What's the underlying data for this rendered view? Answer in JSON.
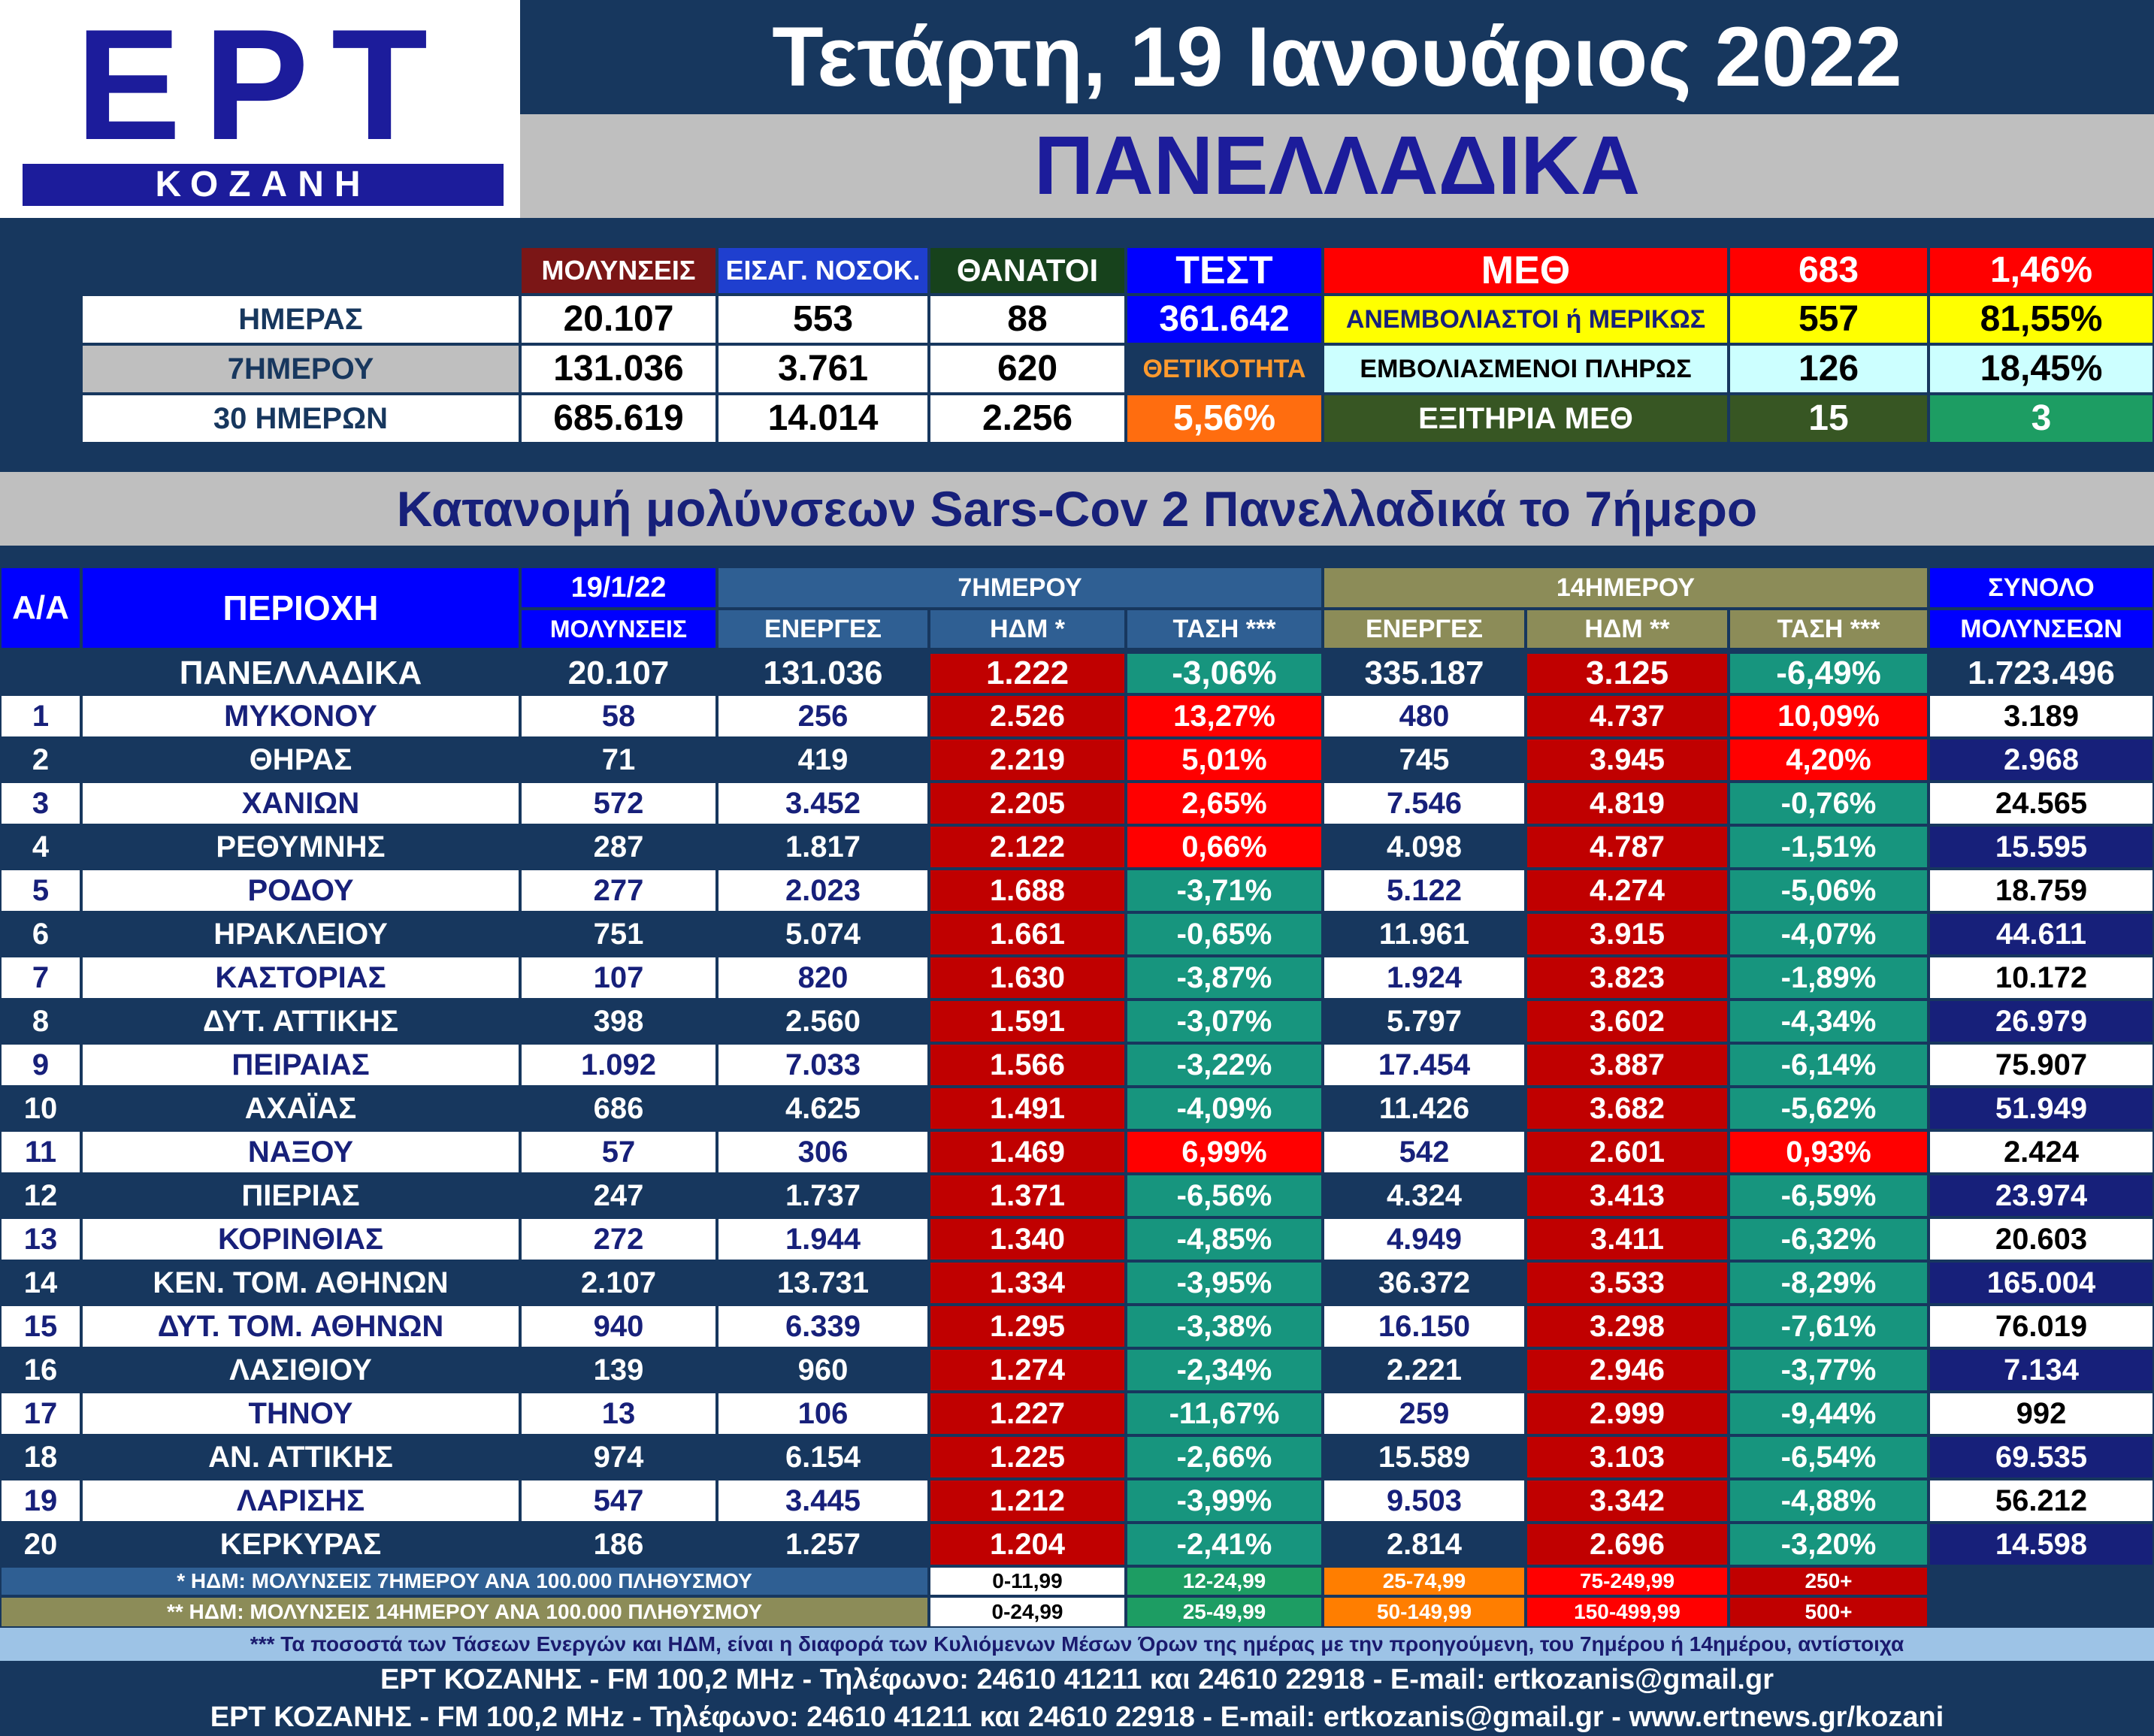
{
  "logo": {
    "brand": "ΕΡΤ",
    "city": "ΚΟΖΑΝΗ"
  },
  "date": "Τετάρτη, 19 Ιανουάριος 2022",
  "subtitle": "ΠΑΝΕΛΛΑΔΙΚΑ",
  "summary": {
    "headers": {
      "infections": "ΜΟΛΥΝΣΕΙΣ",
      "hospital": "ΕΙΣΑΓ. ΝΟΣΟΚ.",
      "deaths": "ΘΑΝΑΤΟΙ",
      "tests": "ΤΕΣΤ"
    },
    "rows": [
      {
        "label": "ΗΜΕΡΑΣ",
        "infections": "20.107",
        "hospital": "553",
        "deaths": "88"
      },
      {
        "label": "7ΗΜΕΡΟΥ",
        "infections": "131.036",
        "hospital": "3.761",
        "deaths": "620"
      },
      {
        "label": "30 ΗΜΕΡΩΝ",
        "infections": "685.619",
        "hospital": "14.014",
        "deaths": "2.256"
      }
    ],
    "tests_value": "361.642",
    "positivity_label": "ΘΕΤΙΚΟΤΗΤΑ",
    "positivity_value": "5,56%",
    "icu": [
      {
        "label": "ΜΕΘ",
        "count": "683",
        "pct": "1,46%"
      },
      {
        "label": "ΑΝΕΜΒΟΛΙΑΣΤΟΙ ή ΜΕΡΙΚΩΣ",
        "count": "557",
        "pct": "81,55%"
      },
      {
        "label": "ΕΜΒΟΛΙΑΣΜΕΝΟΙ ΠΛΗΡΩΣ",
        "count": "126",
        "pct": "18,45%"
      },
      {
        "label": "ΕΞΙΤΗΡΙΑ ΜΕΘ",
        "count": "15",
        "pct": "3"
      }
    ]
  },
  "banner": "Κατανομή μολύνσεων Sars-Cov 2 Πανελλαδικά το 7ήμερο",
  "table": {
    "headers": {
      "aa": "Α/Α",
      "region": "ΠΕΡΙΟΧΗ",
      "date": "19/1/22",
      "infections": "ΜΟΛΥΝΣΕΙΣ",
      "group7": "7ΗΜΕΡΟΥ",
      "active7": "ΕΝΕΡΓΕΣ",
      "hdm7": "ΗΔΜ *",
      "trend7": "ΤΑΣΗ ***",
      "group14": "14ΗΜΕΡΟΥ",
      "active14": "ΕΝΕΡΓΕΣ",
      "hdm14": "ΗΔΜ **",
      "trend14": "ΤΑΣΗ ***",
      "total1": "ΣΥΝΟΛΟ",
      "total2": "ΜΟΛΥΝΣΕΩΝ"
    },
    "national": {
      "label": "ΠΑΝΕΛΛΑΔΙΚΑ",
      "daily": "20.107",
      "active7": "131.036",
      "hdm7": "1.222",
      "trend7": "-3,06%",
      "active14": "335.187",
      "hdm14": "3.125",
      "trend14": "-6,49%",
      "total": "1.723.496"
    },
    "rows": [
      [
        "1",
        "ΜΥΚΟΝΟΥ",
        "58",
        "256",
        "2.526",
        "13,27%",
        "480",
        "4.737",
        "10,09%",
        "3.189"
      ],
      [
        "2",
        "ΘΗΡΑΣ",
        "71",
        "419",
        "2.219",
        "5,01%",
        "745",
        "3.945",
        "4,20%",
        "2.968"
      ],
      [
        "3",
        "ΧΑΝΙΩΝ",
        "572",
        "3.452",
        "2.205",
        "2,65%",
        "7.546",
        "4.819",
        "-0,76%",
        "24.565"
      ],
      [
        "4",
        "ΡΕΘΥΜΝΗΣ",
        "287",
        "1.817",
        "2.122",
        "0,66%",
        "4.098",
        "4.787",
        "-1,51%",
        "15.595"
      ],
      [
        "5",
        "ΡΟΔΟΥ",
        "277",
        "2.023",
        "1.688",
        "-3,71%",
        "5.122",
        "4.274",
        "-5,06%",
        "18.759"
      ],
      [
        "6",
        "ΗΡΑΚΛΕΙΟΥ",
        "751",
        "5.074",
        "1.661",
        "-0,65%",
        "11.961",
        "3.915",
        "-4,07%",
        "44.611"
      ],
      [
        "7",
        "ΚΑΣΤΟΡΙΑΣ",
        "107",
        "820",
        "1.630",
        "-3,87%",
        "1.924",
        "3.823",
        "-1,89%",
        "10.172"
      ],
      [
        "8",
        "ΔΥΤ. ΑΤΤΙΚΗΣ",
        "398",
        "2.560",
        "1.591",
        "-3,07%",
        "5.797",
        "3.602",
        "-4,34%",
        "26.979"
      ],
      [
        "9",
        "ΠΕΙΡΑΙΑΣ",
        "1.092",
        "7.033",
        "1.566",
        "-3,22%",
        "17.454",
        "3.887",
        "-6,14%",
        "75.907"
      ],
      [
        "10",
        "ΑΧΑΪΑΣ",
        "686",
        "4.625",
        "1.491",
        "-4,09%",
        "11.426",
        "3.682",
        "-5,62%",
        "51.949"
      ],
      [
        "11",
        "ΝΑΞΟΥ",
        "57",
        "306",
        "1.469",
        "6,99%",
        "542",
        "2.601",
        "0,93%",
        "2.424"
      ],
      [
        "12",
        "ΠΙΕΡΙΑΣ",
        "247",
        "1.737",
        "1.371",
        "-6,56%",
        "4.324",
        "3.413",
        "-6,59%",
        "23.974"
      ],
      [
        "13",
        "ΚΟΡΙΝΘΙΑΣ",
        "272",
        "1.944",
        "1.340",
        "-4,85%",
        "4.949",
        "3.411",
        "-6,32%",
        "20.603"
      ],
      [
        "14",
        "ΚΕΝ. ΤΟΜ. ΑΘΗΝΩΝ",
        "2.107",
        "13.731",
        "1.334",
        "-3,95%",
        "36.372",
        "3.533",
        "-8,29%",
        "165.004"
      ],
      [
        "15",
        "ΔΥΤ. ΤΟΜ. ΑΘΗΝΩΝ",
        "940",
        "6.339",
        "1.295",
        "-3,38%",
        "16.150",
        "3.298",
        "-7,61%",
        "76.019"
      ],
      [
        "16",
        "ΛΑΣΙΘΙΟΥ",
        "139",
        "960",
        "1.274",
        "-2,34%",
        "2.221",
        "2.946",
        "-3,77%",
        "7.134"
      ],
      [
        "17",
        "ΤΗΝΟΥ",
        "13",
        "106",
        "1.227",
        "-11,67%",
        "259",
        "2.999",
        "-9,44%",
        "992"
      ],
      [
        "18",
        "ΑΝ. ΑΤΤΙΚΗΣ",
        "974",
        "6.154",
        "1.225",
        "-2,66%",
        "15.589",
        "3.103",
        "-6,54%",
        "69.535"
      ],
      [
        "19",
        "ΛΑΡΙΣΗΣ",
        "547",
        "3.445",
        "1.212",
        "-3,99%",
        "9.503",
        "3.342",
        "-4,88%",
        "56.212"
      ],
      [
        "20",
        "ΚΕΡΚΥΡΑΣ",
        "186",
        "1.257",
        "1.204",
        "-2,41%",
        "2.814",
        "2.696",
        "-3,20%",
        "14.598"
      ]
    ]
  },
  "legend": {
    "note1": "* ΗΔΜ: ΜΟΛΥΝΣΕΙΣ 7ΗΜΕΡΟΥ ΑΝΑ 100.000 ΠΛΗΘΥΣΜΟΥ",
    "note2": "** ΗΔΜ: ΜΟΛΥΝΣΕΙΣ 14ΗΜΕΡΟΥ ΑΝΑ 100.000 ΠΛΗΘΥΣΜΟΥ",
    "ranges7": [
      "0-11,99",
      "12-24,99",
      "25-74,99",
      "75-249,99",
      "250+"
    ],
    "ranges14": [
      "0-24,99",
      "25-49,99",
      "50-149,99",
      "150-499,99",
      "500+"
    ],
    "colors": [
      "#ffffff",
      "#1d9d63",
      "#ff7e00",
      "#ff0000",
      "#c00000"
    ]
  },
  "note3": "*** Τα ποσοστά των Τάσεων Ενεργών και ΗΔΜ, είναι η διαφορά των Κυλιόμενων Μέσων Όρων της ημέρας με την προηγούμενη, του 7ημέρου ή 14ημέρου, αντίστοιχα",
  "footer1": "ΕΡΤ ΚΟΖΑΝΗΣ - FM 100,2 MHz - Τηλέφωνο:  24610 41211 και 24610 22918 - E-mail: ertkozanis@gmail.gr",
  "footer2": "ΕΡΤ ΚΟΖΑΝΗΣ - FM 100,2 MHz - Τηλέφωνο:  24610 41211 και 24610 22918 - E-mail: ertkozanis@gmail.gr - www.ertnews.gr/kozani",
  "colors": {
    "navy": "#17375e",
    "hdm_red": "#c00000",
    "trend_teal": "#17957e",
    "trend_red": "#ff0000",
    "icu_yellow": "#ffff00",
    "icu_cyan": "#ccffff",
    "icu_dark_green": "#375623",
    "icu_green": "#1d9d63",
    "tests_blue": "#0000ff",
    "positivity_orange": "#ff6d0f",
    "infections_maroon": "#7b1616",
    "hospital_blue": "#1f3fcf",
    "deaths_green": "#17421c",
    "olive": "#8c8c58",
    "steel": "#2f5f93"
  }
}
